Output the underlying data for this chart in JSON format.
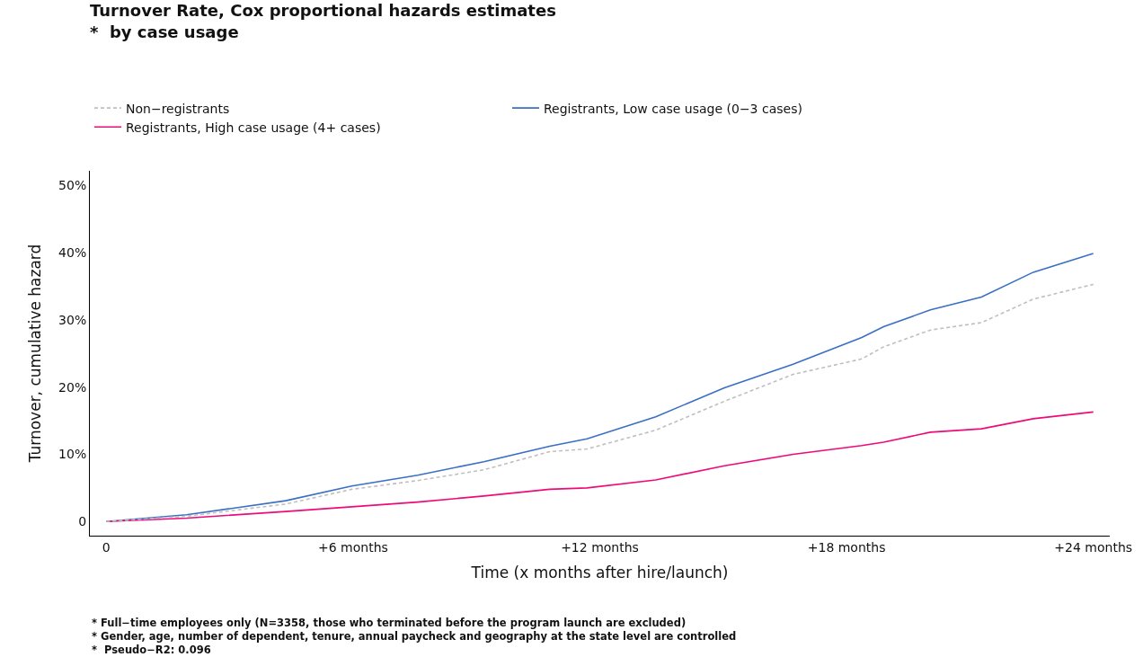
{
  "chart_data": {
    "type": "line",
    "title": "Turnover Rate, Cox proportional hazards estimates",
    "subtitle": "*  by case usage",
    "xlabel": "Time (x months after hire/launch)",
    "ylabel": "Turnover, cumulative hazard",
    "x": [
      0,
      1.95,
      4.36,
      5.97,
      7.57,
      9.18,
      10.78,
      11.69,
      13.36,
      15.03,
      16.7,
      18.37,
      18.9,
      20.04,
      21.28,
      22.54,
      24
    ],
    "series": [
      {
        "name": "Non−registrants",
        "color": "#bfbfbf",
        "line_style": "dashed",
        "values": [
          0,
          0.8,
          2.6,
          4.8,
          6.1,
          7.7,
          10.4,
          10.8,
          13.6,
          17.9,
          21.9,
          24.2,
          26.0,
          28.5,
          29.6,
          33.1,
          35.3
        ]
      },
      {
        "name": "Registrants, Low case usage (0−3 cases)",
        "color": "#3a6fc4",
        "line_style": "solid",
        "values": [
          0,
          1.0,
          3.1,
          5.3,
          6.9,
          8.9,
          11.2,
          12.3,
          15.6,
          19.9,
          23.4,
          27.4,
          29.0,
          31.5,
          33.4,
          37.1,
          39.9
        ]
      },
      {
        "name": "Registrants, High case usage (4+ cases)",
        "color": "#ee0a7a",
        "line_style": "solid",
        "values": [
          0,
          0.5,
          1.5,
          2.2,
          2.9,
          3.8,
          4.8,
          5.0,
          6.2,
          8.3,
          10.0,
          11.3,
          11.8,
          13.3,
          13.8,
          15.3,
          16.3
        ]
      }
    ],
    "xlim": [
      -0.4,
      24.4
    ],
    "xticks": [
      0,
      {
        "value": 6,
        "label": "+6 months"
      },
      {
        "value": 12,
        "label": "+12 months"
      },
      {
        "value": 18,
        "label": "+18 months"
      },
      {
        "value": 24,
        "label": "+24 months"
      }
    ],
    "ylim": [
      -2.1,
      52.2
    ],
    "yticks": [
      0,
      {
        "value": 10,
        "label": "10%"
      },
      {
        "value": 20,
        "label": "20%"
      },
      {
        "value": 30,
        "label": "30%"
      },
      {
        "value": 40,
        "label": "40%"
      },
      {
        "value": 50,
        "label": "50%"
      }
    ],
    "legend": "top left",
    "annotations": [
      "* Full−time employees only (N=3358, those who terminated before the program launch are excluded)",
      "* Gender, age, number of dependent, tenure, annual paycheck and geography at the state level are controlled",
      "*  Pseudo−R2: 0.096"
    ]
  }
}
